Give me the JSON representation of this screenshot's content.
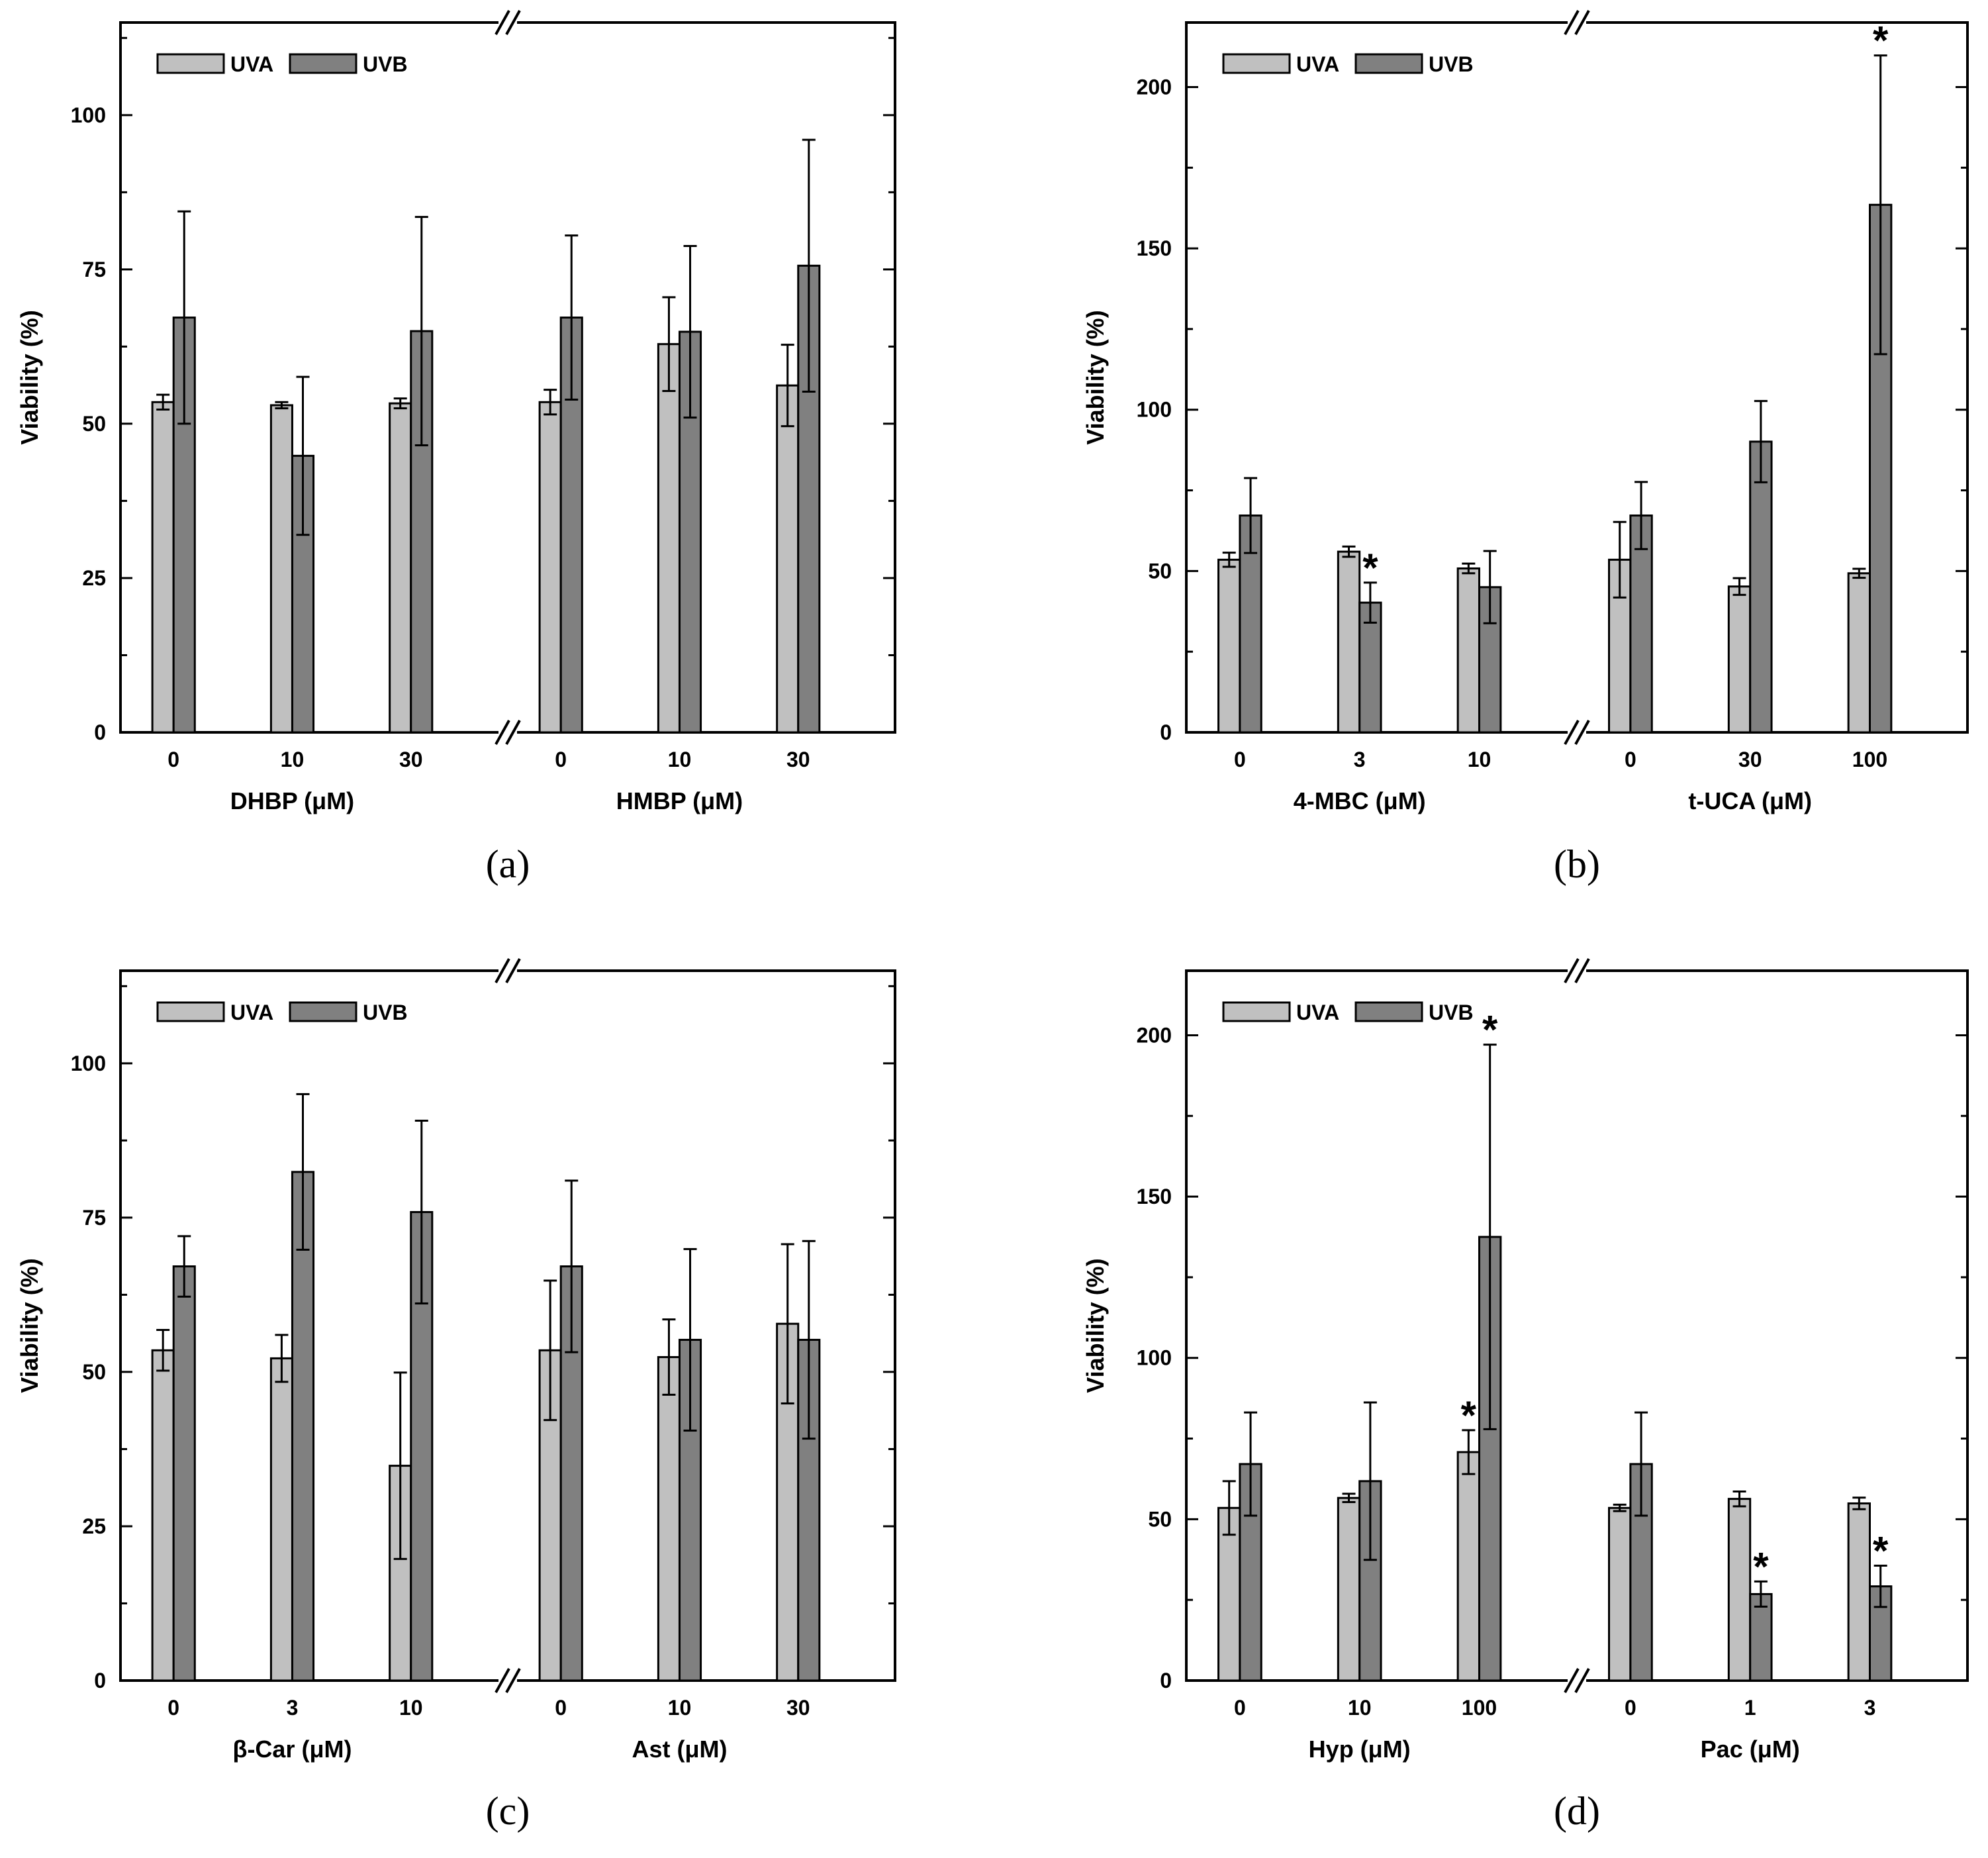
{
  "figure": {
    "uva_color": "#c0c0c0",
    "uvb_color": "#808080",
    "axis_color": "#000000"
  },
  "chart_data": [
    {
      "type": "bar",
      "panel_label": "(a)",
      "ylabel": "Viability   (%)",
      "ylim": [
        0,
        115
      ],
      "yticks": [
        0,
        25,
        50,
        75,
        100
      ],
      "ytick_labels": [
        "0",
        "25",
        "50",
        "75",
        "100"
      ],
      "legend": [
        "UVA",
        "UVB"
      ],
      "legend_position": "top-left",
      "groups": [
        {
          "xlabel": "DHBP   (μM)",
          "categories": [
            "0",
            "10",
            "30"
          ],
          "series": [
            {
              "name": "UVA",
              "values": [
                53.5,
                53,
                53.3
              ],
              "errors": [
                1.2,
                0.5,
                0.8
              ],
              "stars": [
                false,
                false,
                false
              ]
            },
            {
              "name": "UVB",
              "values": [
                67.2,
                44.8,
                65
              ],
              "errors": [
                17.2,
                12.8,
                18.5
              ],
              "stars": [
                false,
                false,
                false
              ]
            }
          ]
        },
        {
          "xlabel": "HMBP   (μM)",
          "categories": [
            "0",
            "10",
            "30"
          ],
          "series": [
            {
              "name": "UVA",
              "values": [
                53.5,
                62.9,
                56.2
              ],
              "errors": [
                2,
                7.6,
                6.6
              ],
              "stars": [
                false,
                false,
                false
              ]
            },
            {
              "name": "UVB",
              "values": [
                67.2,
                64.9,
                75.6
              ],
              "errors": [
                13.3,
                13.9,
                20.4
              ],
              "stars": [
                false,
                false,
                false
              ]
            }
          ]
        }
      ]
    },
    {
      "type": "bar",
      "panel_label": "(b)",
      "ylabel": "Viability   (%)",
      "ylim": [
        0,
        220
      ],
      "yticks": [
        0,
        50,
        100,
        150,
        200
      ],
      "ytick_labels": [
        "0",
        "50",
        "100",
        "150",
        "200"
      ],
      "legend": [
        "UVA",
        "UVB"
      ],
      "legend_position": "top-left",
      "groups": [
        {
          "xlabel": "4-MBC   (μM)",
          "categories": [
            "0",
            "3",
            "10"
          ],
          "series": [
            {
              "name": "UVA",
              "values": [
                53.5,
                56,
                50.8
              ],
              "errors": [
                2.2,
                1.6,
                1.5
              ],
              "stars": [
                false,
                false,
                false
              ]
            },
            {
              "name": "UVB",
              "values": [
                67.2,
                40.2,
                45
              ],
              "errors": [
                11.6,
                6.2,
                11.2
              ],
              "stars": [
                false,
                true,
                false
              ]
            }
          ]
        },
        {
          "xlabel": "t-UCA   (μM)",
          "categories": [
            "0",
            "30",
            "100"
          ],
          "series": [
            {
              "name": "UVA",
              "values": [
                53.5,
                45.2,
                49.3
              ],
              "errors": [
                11.7,
                2.6,
                1.4
              ],
              "stars": [
                false,
                false,
                false
              ]
            },
            {
              "name": "UVB",
              "values": [
                67.2,
                90.1,
                163.5
              ],
              "errors": [
                10.4,
                12.6,
                46.3
              ],
              "stars": [
                false,
                false,
                true
              ]
            }
          ]
        }
      ]
    },
    {
      "type": "bar",
      "panel_label": "(c)",
      "ylabel": "Viability   (%)",
      "ylim": [
        0,
        115
      ],
      "yticks": [
        0,
        25,
        50,
        75,
        100
      ],
      "ytick_labels": [
        "0",
        "25",
        "50",
        "75",
        "100"
      ],
      "legend": [
        "UVA",
        "UVB"
      ],
      "legend_position": "top-left",
      "groups": [
        {
          "xlabel": "β-Car   (μM)",
          "categories": [
            "0",
            "3",
            "10"
          ],
          "series": [
            {
              "name": "UVA",
              "values": [
                53.5,
                52.2,
                34.8
              ],
              "errors": [
                3.3,
                3.8,
                15.1
              ],
              "stars": [
                false,
                false,
                false
              ]
            },
            {
              "name": "UVB",
              "values": [
                67.1,
                82.4,
                75.9
              ],
              "errors": [
                4.9,
                12.6,
                14.8
              ],
              "stars": [
                false,
                false,
                false
              ]
            }
          ]
        },
        {
          "xlabel": "Ast   (μM)",
          "categories": [
            "0",
            "10",
            "30"
          ],
          "series": [
            {
              "name": "UVA",
              "values": [
                53.5,
                52.4,
                57.8
              ],
              "errors": [
                11.3,
                6.1,
                12.9
              ],
              "stars": [
                false,
                false,
                false
              ]
            },
            {
              "name": "UVB",
              "values": [
                67.1,
                55.2,
                55.2
              ],
              "errors": [
                13.9,
                14.7,
                16
              ],
              "stars": [
                false,
                false,
                false
              ]
            }
          ]
        }
      ]
    },
    {
      "type": "bar",
      "panel_label": "(d)",
      "ylabel": "Viability   (%)",
      "ylim": [
        0,
        220
      ],
      "yticks": [
        0,
        50,
        100,
        150,
        200
      ],
      "ytick_labels": [
        "0",
        "50",
        "100",
        "150",
        "200"
      ],
      "legend": [
        "UVA",
        "UVB"
      ],
      "legend_position": "top-left",
      "groups": [
        {
          "xlabel": "Hyp   (μM)",
          "categories": [
            "0",
            "10",
            "100"
          ],
          "series": [
            {
              "name": "UVA",
              "values": [
                53.5,
                56.6,
                70.8
              ],
              "errors": [
                8.3,
                1.3,
                6.8
              ],
              "stars": [
                false,
                false,
                true
              ]
            },
            {
              "name": "UVB",
              "values": [
                67.1,
                61.8,
                137.5
              ],
              "errors": [
                16,
                24.4,
                59.6
              ],
              "stars": [
                false,
                false,
                true
              ]
            }
          ]
        },
        {
          "xlabel": "Pac   (μM)",
          "categories": [
            "0",
            "1",
            "3"
          ],
          "series": [
            {
              "name": "UVA",
              "values": [
                53.5,
                56.3,
                54.9
              ],
              "errors": [
                1,
                2.3,
                1.8
              ],
              "stars": [
                false,
                false,
                false
              ]
            },
            {
              "name": "UVB",
              "values": [
                67.1,
                26.8,
                29.2
              ],
              "errors": [
                16,
                3.9,
                6.4
              ],
              "stars": [
                false,
                true,
                true
              ]
            }
          ]
        }
      ]
    }
  ]
}
